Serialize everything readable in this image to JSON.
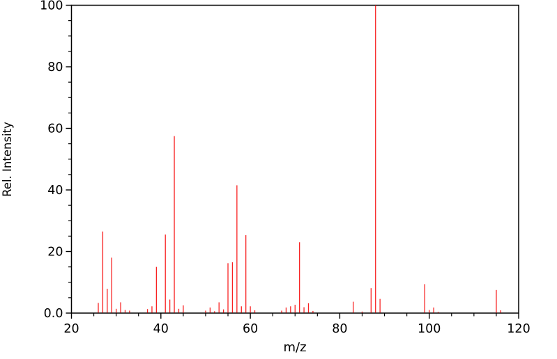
{
  "chart_data": {
    "type": "bar",
    "subtype": "mass-spectrum-stem",
    "title": "",
    "xlabel": "m/z",
    "ylabel": "Rel. Intensity",
    "xlim": [
      20,
      120
    ],
    "ylim": [
      0,
      100
    ],
    "x_major_ticks": [
      20,
      40,
      60,
      80,
      100,
      120
    ],
    "xtick_labels": [
      "20",
      "40",
      "60",
      "80",
      "100",
      "120"
    ],
    "y_major_ticks": [
      0,
      20,
      40,
      60,
      80,
      100
    ],
    "ytick_labels": [
      "0.0",
      "20",
      "40",
      "60",
      "80",
      "100"
    ],
    "minor_tick_step": 5,
    "grid": false,
    "legend": false,
    "peak_color": "#f82222",
    "axis_color": "#000000",
    "background_color": "#ffffff",
    "base_peak_mz": 88,
    "peaks": [
      [
        26,
        3.3
      ],
      [
        27,
        26.5
      ],
      [
        28,
        7.9
      ],
      [
        29,
        18.0
      ],
      [
        30,
        1.4
      ],
      [
        31,
        3.5
      ],
      [
        32,
        1.0
      ],
      [
        33,
        0.8
      ],
      [
        37,
        1.3
      ],
      [
        38,
        2.2
      ],
      [
        39,
        15.0
      ],
      [
        41,
        25.5
      ],
      [
        42,
        4.4
      ],
      [
        43,
        57.5
      ],
      [
        44,
        1.4
      ],
      [
        45,
        2.5
      ],
      [
        50,
        0.8
      ],
      [
        51,
        1.8
      ],
      [
        52,
        0.6
      ],
      [
        53,
        3.5
      ],
      [
        54,
        1.2
      ],
      [
        55,
        16.2
      ],
      [
        56,
        16.5
      ],
      [
        57,
        41.5
      ],
      [
        58,
        2.2
      ],
      [
        59,
        25.3
      ],
      [
        60,
        2.2
      ],
      [
        61,
        0.9
      ],
      [
        67,
        0.8
      ],
      [
        68,
        1.8
      ],
      [
        69,
        2.2
      ],
      [
        70,
        2.7
      ],
      [
        71,
        23.0
      ],
      [
        72,
        1.9
      ],
      [
        73,
        3.2
      ],
      [
        74,
        0.7
      ],
      [
        83,
        3.7
      ],
      [
        85,
        0.5
      ],
      [
        87,
        8.1
      ],
      [
        88,
        100.0
      ],
      [
        89,
        4.6
      ],
      [
        99,
        9.4
      ],
      [
        100,
        1.0
      ],
      [
        101,
        1.8
      ],
      [
        102,
        0.4
      ],
      [
        115,
        7.5
      ],
      [
        116,
        0.9
      ]
    ]
  }
}
